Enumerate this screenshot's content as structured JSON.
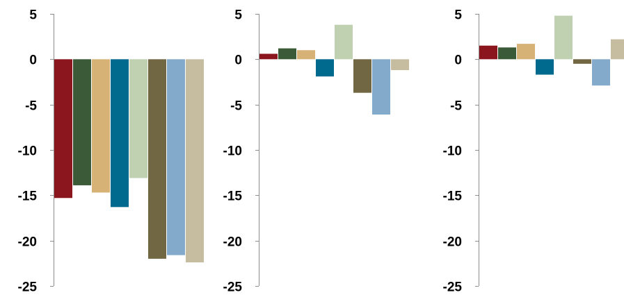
{
  "colors": [
    "#8B161D",
    "#3B5B38",
    "#D6B277",
    "#006A8E",
    "#BFD1B1",
    "#716743",
    "#84AACB",
    "#C6BDA1"
  ],
  "chart_data": [
    {
      "type": "bar",
      "ylim": [
        -25,
        5
      ],
      "yticks": [
        "5",
        "0",
        "-5",
        "-10",
        "-15",
        "-20",
        "-25"
      ],
      "values": [
        -15.3,
        -13.9,
        -14.7,
        -16.3,
        -13.1,
        -22.0,
        -21.6,
        -22.4
      ],
      "grid": false,
      "legend": "none"
    },
    {
      "type": "bar",
      "ylim": [
        -25,
        5
      ],
      "yticks": [
        "5",
        "0",
        "-5",
        "-10",
        "-15",
        "-20",
        "-25"
      ],
      "values": [
        0.6,
        1.2,
        1.0,
        -1.9,
        3.8,
        -3.7,
        -6.1,
        -1.2
      ],
      "grid": false,
      "legend": "none"
    },
    {
      "type": "bar",
      "ylim": [
        -25,
        5
      ],
      "yticks": [
        "5",
        "0",
        "-5",
        "-10",
        "-15",
        "-20",
        "-25"
      ],
      "values": [
        1.5,
        1.3,
        1.7,
        -1.7,
        4.8,
        -0.5,
        -2.9,
        2.2
      ],
      "grid": false,
      "legend": "none"
    }
  ]
}
